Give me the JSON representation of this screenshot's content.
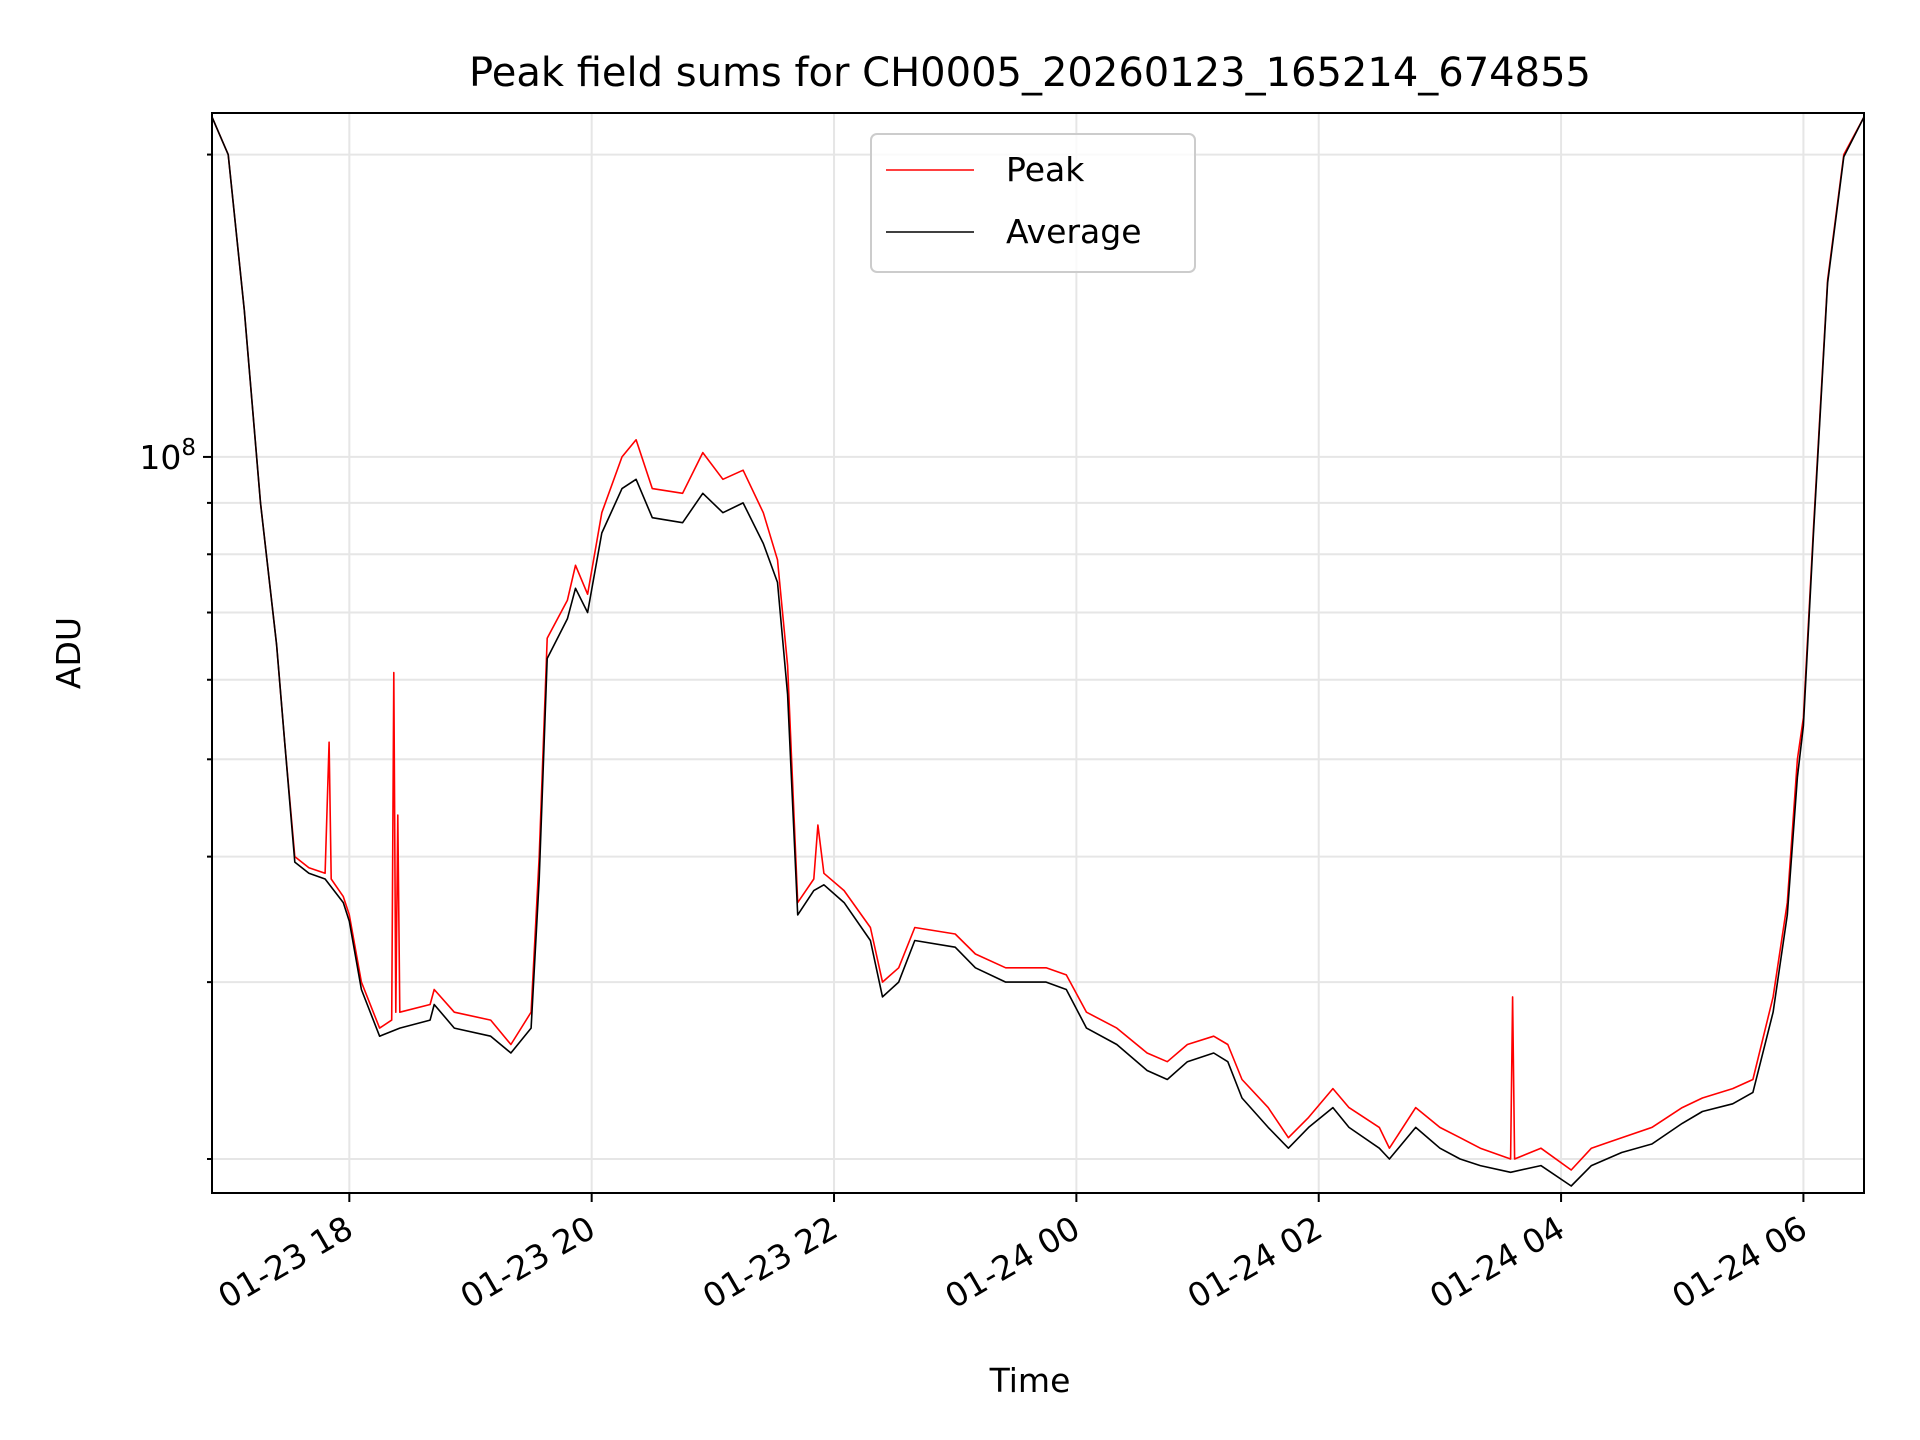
{
  "chart_data": {
    "type": "line",
    "title": "Peak field sums for CH0005_20260123_165214_674855",
    "xlabel": "Time",
    "ylabel": "ADU",
    "x_type": "datetime",
    "xlim": [
      "2026-01-23T16:52",
      "2026-01-24T06:30"
    ],
    "ylim": [
      18500000,
      220000000
    ],
    "yscale": "log",
    "y_tick_labels": [
      {
        "value": 100000000,
        "base": "10",
        "exp": "8"
      }
    ],
    "y_minor_ticks": [
      20000000,
      30000000,
      40000000,
      50000000,
      60000000,
      70000000,
      80000000,
      90000000,
      200000000
    ],
    "x_ticks": [
      {
        "t": "2026-01-23T18:00",
        "label": "01-23 18"
      },
      {
        "t": "2026-01-23T20:00",
        "label": "01-23 20"
      },
      {
        "t": "2026-01-23T22:00",
        "label": "01-23 22"
      },
      {
        "t": "2026-01-24T00:00",
        "label": "01-24 00"
      },
      {
        "t": "2026-01-24T02:00",
        "label": "01-24 02"
      },
      {
        "t": "2026-01-24T04:00",
        "label": "01-24 04"
      },
      {
        "t": "2026-01-24T06:00",
        "label": "01-24 06"
      }
    ],
    "grid": true,
    "legend_position": "upper center",
    "series": [
      {
        "name": "Peak",
        "color": "#ff0000",
        "points": [
          [
            "2026-01-23T16:52",
            218000000
          ],
          [
            "2026-01-23T17:00",
            200000000
          ],
          [
            "2026-01-23T17:08",
            140000000
          ],
          [
            "2026-01-23T17:16",
            90000000
          ],
          [
            "2026-01-23T17:24",
            65000000
          ],
          [
            "2026-01-23T17:28",
            52000000
          ],
          [
            "2026-01-23T17:33",
            40000000
          ],
          [
            "2026-01-23T17:40",
            39000000
          ],
          [
            "2026-01-23T17:48",
            38500000
          ],
          [
            "2026-01-23T17:50",
            52000000
          ],
          [
            "2026-01-23T17:51",
            38000000
          ],
          [
            "2026-01-23T17:57",
            36500000
          ],
          [
            "2026-01-23T18:00",
            35000000
          ],
          [
            "2026-01-23T18:06",
            30000000
          ],
          [
            "2026-01-23T18:15",
            27000000
          ],
          [
            "2026-01-23T18:21",
            27500000
          ],
          [
            "2026-01-23T18:22",
            61000000
          ],
          [
            "2026-01-23T18:23",
            28000000
          ],
          [
            "2026-01-23T18:24",
            44000000
          ],
          [
            "2026-01-23T18:25",
            28000000
          ],
          [
            "2026-01-23T18:40",
            28500000
          ],
          [
            "2026-01-23T18:42",
            29500000
          ],
          [
            "2026-01-23T18:52",
            28000000
          ],
          [
            "2026-01-23T19:10",
            27500000
          ],
          [
            "2026-01-23T19:20",
            26000000
          ],
          [
            "2026-01-23T19:30",
            28000000
          ],
          [
            "2026-01-23T19:34",
            40000000
          ],
          [
            "2026-01-23T19:38",
            66000000
          ],
          [
            "2026-01-23T19:48",
            72000000
          ],
          [
            "2026-01-23T19:52",
            78000000
          ],
          [
            "2026-01-23T19:58",
            73000000
          ],
          [
            "2026-01-23T20:05",
            88000000
          ],
          [
            "2026-01-23T20:15",
            100000000
          ],
          [
            "2026-01-23T20:22",
            104000000
          ],
          [
            "2026-01-23T20:30",
            93000000
          ],
          [
            "2026-01-23T20:45",
            92000000
          ],
          [
            "2026-01-23T20:55",
            101000000
          ],
          [
            "2026-01-23T21:05",
            95000000
          ],
          [
            "2026-01-23T21:15",
            97000000
          ],
          [
            "2026-01-23T21:25",
            88000000
          ],
          [
            "2026-01-23T21:32",
            79000000
          ],
          [
            "2026-01-23T21:37",
            62000000
          ],
          [
            "2026-01-23T21:42",
            36000000
          ],
          [
            "2026-01-23T21:50",
            38000000
          ],
          [
            "2026-01-23T21:52",
            43000000
          ],
          [
            "2026-01-23T21:55",
            38500000
          ],
          [
            "2026-01-23T22:05",
            37000000
          ],
          [
            "2026-01-23T22:18",
            34000000
          ],
          [
            "2026-01-23T22:24",
            30000000
          ],
          [
            "2026-01-23T22:32",
            31000000
          ],
          [
            "2026-01-23T22:40",
            34000000
          ],
          [
            "2026-01-23T23:00",
            33500000
          ],
          [
            "2026-01-23T23:10",
            32000000
          ],
          [
            "2026-01-23T23:25",
            31000000
          ],
          [
            "2026-01-23T23:45",
            31000000
          ],
          [
            "2026-01-23T23:55",
            30500000
          ],
          [
            "2026-01-24T00:05",
            28000000
          ],
          [
            "2026-01-24T00:20",
            27000000
          ],
          [
            "2026-01-24T00:35",
            25500000
          ],
          [
            "2026-01-24T00:45",
            25000000
          ],
          [
            "2026-01-24T00:55",
            26000000
          ],
          [
            "2026-01-24T01:08",
            26500000
          ],
          [
            "2026-01-24T01:15",
            26000000
          ],
          [
            "2026-01-24T01:22",
            24000000
          ],
          [
            "2026-01-24T01:35",
            22500000
          ],
          [
            "2026-01-24T01:45",
            21000000
          ],
          [
            "2026-01-24T01:55",
            22000000
          ],
          [
            "2026-01-24T02:07",
            23500000
          ],
          [
            "2026-01-24T02:15",
            22500000
          ],
          [
            "2026-01-24T02:30",
            21500000
          ],
          [
            "2026-01-24T02:35",
            20500000
          ],
          [
            "2026-01-24T02:48",
            22500000
          ],
          [
            "2026-01-24T03:00",
            21500000
          ],
          [
            "2026-01-24T03:10",
            21000000
          ],
          [
            "2026-01-24T03:20",
            20500000
          ],
          [
            "2026-01-24T03:35",
            20000000
          ],
          [
            "2026-01-24T03:36",
            29000000
          ],
          [
            "2026-01-24T03:37",
            20000000
          ],
          [
            "2026-01-24T03:50",
            20500000
          ],
          [
            "2026-01-24T04:05",
            19500000
          ],
          [
            "2026-01-24T04:15",
            20500000
          ],
          [
            "2026-01-24T04:30",
            21000000
          ],
          [
            "2026-01-24T04:45",
            21500000
          ],
          [
            "2026-01-24T05:00",
            22500000
          ],
          [
            "2026-01-24T05:10",
            23000000
          ],
          [
            "2026-01-24T05:25",
            23500000
          ],
          [
            "2026-01-24T05:35",
            24000000
          ],
          [
            "2026-01-24T05:45",
            29000000
          ],
          [
            "2026-01-24T05:52",
            36000000
          ],
          [
            "2026-01-24T05:57",
            50000000
          ],
          [
            "2026-01-24T06:00",
            55000000
          ],
          [
            "2026-01-24T06:05",
            85000000
          ],
          [
            "2026-01-24T06:12",
            150000000
          ],
          [
            "2026-01-24T06:20",
            200000000
          ],
          [
            "2026-01-24T06:30",
            218000000
          ]
        ]
      },
      {
        "name": "Average",
        "color": "#000000",
        "points": [
          [
            "2026-01-23T16:52",
            218000000
          ],
          [
            "2026-01-23T17:00",
            200000000
          ],
          [
            "2026-01-23T17:08",
            140000000
          ],
          [
            "2026-01-23T17:16",
            90000000
          ],
          [
            "2026-01-23T17:24",
            65000000
          ],
          [
            "2026-01-23T17:28",
            52000000
          ],
          [
            "2026-01-23T17:33",
            39500000
          ],
          [
            "2026-01-23T17:40",
            38500000
          ],
          [
            "2026-01-23T17:48",
            38000000
          ],
          [
            "2026-01-23T17:57",
            36000000
          ],
          [
            "2026-01-23T18:00",
            34500000
          ],
          [
            "2026-01-23T18:06",
            29500000
          ],
          [
            "2026-01-23T18:15",
            26500000
          ],
          [
            "2026-01-23T18:25",
            27000000
          ],
          [
            "2026-01-23T18:40",
            27500000
          ],
          [
            "2026-01-23T18:42",
            28500000
          ],
          [
            "2026-01-23T18:52",
            27000000
          ],
          [
            "2026-01-23T19:10",
            26500000
          ],
          [
            "2026-01-23T19:20",
            25500000
          ],
          [
            "2026-01-23T19:30",
            27000000
          ],
          [
            "2026-01-23T19:34",
            38000000
          ],
          [
            "2026-01-23T19:38",
            63000000
          ],
          [
            "2026-01-23T19:48",
            69000000
          ],
          [
            "2026-01-23T19:52",
            74000000
          ],
          [
            "2026-01-23T19:58",
            70000000
          ],
          [
            "2026-01-23T20:05",
            84000000
          ],
          [
            "2026-01-23T20:15",
            93000000
          ],
          [
            "2026-01-23T20:22",
            95000000
          ],
          [
            "2026-01-23T20:30",
            87000000
          ],
          [
            "2026-01-23T20:45",
            86000000
          ],
          [
            "2026-01-23T20:55",
            92000000
          ],
          [
            "2026-01-23T21:05",
            88000000
          ],
          [
            "2026-01-23T21:15",
            90000000
          ],
          [
            "2026-01-23T21:25",
            82000000
          ],
          [
            "2026-01-23T21:32",
            75000000
          ],
          [
            "2026-01-23T21:37",
            58000000
          ],
          [
            "2026-01-23T21:42",
            35000000
          ],
          [
            "2026-01-23T21:50",
            37000000
          ],
          [
            "2026-01-23T21:55",
            37500000
          ],
          [
            "2026-01-23T22:05",
            36000000
          ],
          [
            "2026-01-23T22:18",
            33000000
          ],
          [
            "2026-01-23T22:24",
            29000000
          ],
          [
            "2026-01-23T22:32",
            30000000
          ],
          [
            "2026-01-23T22:40",
            33000000
          ],
          [
            "2026-01-23T23:00",
            32500000
          ],
          [
            "2026-01-23T23:10",
            31000000
          ],
          [
            "2026-01-23T23:25",
            30000000
          ],
          [
            "2026-01-23T23:45",
            30000000
          ],
          [
            "2026-01-23T23:55",
            29500000
          ],
          [
            "2026-01-24T00:05",
            27000000
          ],
          [
            "2026-01-24T00:20",
            26000000
          ],
          [
            "2026-01-24T00:35",
            24500000
          ],
          [
            "2026-01-24T00:45",
            24000000
          ],
          [
            "2026-01-24T00:55",
            25000000
          ],
          [
            "2026-01-24T01:08",
            25500000
          ],
          [
            "2026-01-24T01:15",
            25000000
          ],
          [
            "2026-01-24T01:22",
            23000000
          ],
          [
            "2026-01-24T01:35",
            21500000
          ],
          [
            "2026-01-24T01:45",
            20500000
          ],
          [
            "2026-01-24T01:55",
            21500000
          ],
          [
            "2026-01-24T02:07",
            22500000
          ],
          [
            "2026-01-24T02:15",
            21500000
          ],
          [
            "2026-01-24T02:30",
            20500000
          ],
          [
            "2026-01-24T02:35",
            20000000
          ],
          [
            "2026-01-24T02:48",
            21500000
          ],
          [
            "2026-01-24T03:00",
            20500000
          ],
          [
            "2026-01-24T03:10",
            20000000
          ],
          [
            "2026-01-24T03:20",
            19700000
          ],
          [
            "2026-01-24T03:35",
            19400000
          ],
          [
            "2026-01-24T03:50",
            19700000
          ],
          [
            "2026-01-24T04:05",
            18800000
          ],
          [
            "2026-01-24T04:15",
            19700000
          ],
          [
            "2026-01-24T04:30",
            20300000
          ],
          [
            "2026-01-24T04:45",
            20700000
          ],
          [
            "2026-01-24T05:00",
            21700000
          ],
          [
            "2026-01-24T05:10",
            22300000
          ],
          [
            "2026-01-24T05:25",
            22700000
          ],
          [
            "2026-01-24T05:35",
            23300000
          ],
          [
            "2026-01-24T05:45",
            28000000
          ],
          [
            "2026-01-24T05:52",
            35000000
          ],
          [
            "2026-01-24T05:57",
            48000000
          ],
          [
            "2026-01-24T06:00",
            54000000
          ],
          [
            "2026-01-24T06:05",
            84000000
          ],
          [
            "2026-01-24T06:12",
            149000000
          ],
          [
            "2026-01-24T06:20",
            199000000
          ],
          [
            "2026-01-24T06:30",
            218000000
          ]
        ]
      }
    ]
  }
}
